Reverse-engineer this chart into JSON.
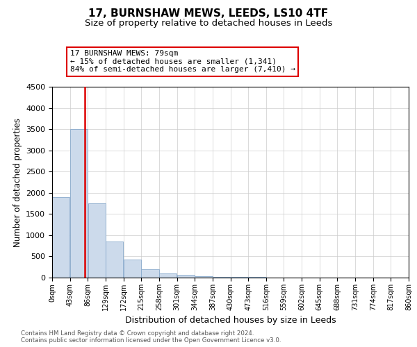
{
  "title": "17, BURNSHAW MEWS, LEEDS, LS10 4TF",
  "subtitle": "Size of property relative to detached houses in Leeds",
  "xlabel": "Distribution of detached houses by size in Leeds",
  "ylabel": "Number of detached properties",
  "annotation_line1": "17 BURNSHAW MEWS: 79sqm",
  "annotation_line2": "← 15% of detached houses are smaller (1,341)",
  "annotation_line3": "84% of semi-detached houses are larger (7,410) →",
  "property_size_sqm": 79,
  "bin_edges": [
    0,
    43,
    86,
    129,
    172,
    215,
    258,
    301,
    344,
    387,
    430,
    473,
    516,
    559,
    602,
    645,
    688,
    731,
    774,
    817,
    860
  ],
  "bin_labels": [
    "0sqm",
    "43sqm",
    "86sqm",
    "129sqm",
    "172sqm",
    "215sqm",
    "258sqm",
    "301sqm",
    "344sqm",
    "387sqm",
    "430sqm",
    "473sqm",
    "516sqm",
    "559sqm",
    "602sqm",
    "645sqm",
    "688sqm",
    "731sqm",
    "774sqm",
    "817sqm",
    "860sqm"
  ],
  "bar_heights": [
    1900,
    3500,
    1750,
    850,
    420,
    200,
    100,
    60,
    35,
    20,
    15,
    10,
    8,
    6,
    5,
    4,
    3,
    2,
    1,
    1
  ],
  "bar_color": "#ccdaeb",
  "bar_edge_color": "#88aacc",
  "vline_color": "#dd0000",
  "ylim_max": 4500,
  "ytick_step": 500,
  "bg_color": "#ffffff",
  "grid_color": "#cccccc",
  "title_fontsize": 11,
  "subtitle_fontsize": 9.5,
  "ylabel_fontsize": 8.5,
  "xlabel_fontsize": 9,
  "footer_line1": "Contains HM Land Registry data © Crown copyright and database right 2024.",
  "footer_line2": "Contains public sector information licensed under the Open Government Licence v3.0."
}
